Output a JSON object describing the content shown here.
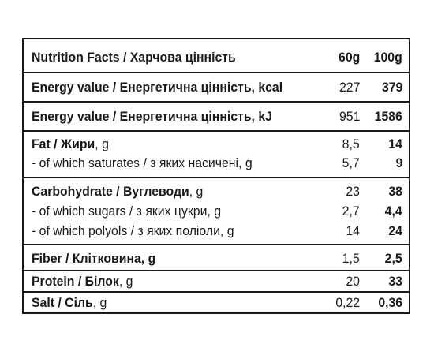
{
  "header": {
    "title": "Nutrition Facts / Харчова цінність",
    "col_60": "60g",
    "col_100": "100g"
  },
  "rows": [
    {
      "bold": "Energy value / Енергетична цінність, kcal",
      "normal": "",
      "v60": "227",
      "v100": "379"
    },
    {
      "bold": "Energy value / Енергетична цінність, kJ",
      "normal": "",
      "v60": "951",
      "v100": "1586"
    },
    {
      "bold": "Fat / Жири",
      "normal": ", g",
      "v60": "8,5",
      "v100": "14"
    },
    {
      "bold": "",
      "normal": "- of which saturates / з яких насичені, g",
      "v60": "5,7",
      "v100": "9"
    },
    {
      "bold": "Carbohydrate / Вуглеводи",
      "normal": ", g",
      "v60": "23",
      "v100": "38"
    },
    {
      "bold": "",
      "normal": "- of which sugars / з яких цукри, g",
      "v60": "2,7",
      "v100": "4,4"
    },
    {
      "bold": "",
      "normal": "- of which polyols / з яких поліоли, g",
      "v60": "14",
      "v100": "24"
    },
    {
      "bold": "Fiber / Клітковина, g",
      "normal": "",
      "v60": "1,5",
      "v100": "2,5"
    },
    {
      "bold": "Protein / Білок",
      "normal": ", g",
      "v60": "20",
      "v100": "33"
    },
    {
      "bold": "Salt / Сіль",
      "normal": ", g",
      "v60": "0,22",
      "v100": "0,36"
    }
  ]
}
